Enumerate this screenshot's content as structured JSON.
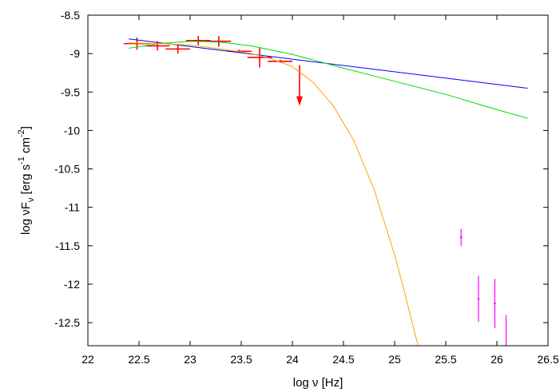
{
  "chart_data": {
    "type": "scatter",
    "xlabel": "log ν [Hz]",
    "ylabel_parts": {
      "main": "log νF",
      "sub": "ν",
      "units_open": " [erg s",
      "exp1": "-1",
      "units_mid": " cm",
      "exp2": "-2",
      "units_close": "]"
    },
    "xlim": [
      22,
      26.5
    ],
    "ylim": [
      -12.8,
      -8.5
    ],
    "x_ticks": [
      22,
      22.5,
      23,
      23.5,
      24,
      24.5,
      25,
      25.5,
      26,
      26.5
    ],
    "x_tick_labels": [
      "22",
      "22.5",
      "23",
      "23.5",
      "24",
      "24.5",
      "25",
      "25.5",
      "26",
      "26.5"
    ],
    "y_ticks": [
      -8.5,
      -9,
      -9.5,
      -10,
      -10.5,
      -11,
      -11.5,
      -12,
      -12.5
    ],
    "y_tick_labels": [
      "-8.5",
      "-9",
      "-9.5",
      "-10",
      "-10.5",
      "-11",
      "-11.5",
      "-12",
      "-12.5"
    ],
    "grid": false,
    "colors": {
      "fermi_points": "#ff0000",
      "tev_points": "#ff00ff",
      "model_powerlaw": "#0000ff",
      "model_logparabola": "#00dd00",
      "model_cutoff": "#ffa500",
      "axes": "#000000"
    },
    "series": [
      {
        "kind": "points",
        "color_key": "fermi_points",
        "points": [
          {
            "x": 22.48,
            "y": -8.87,
            "xerr": 0.13,
            "yerr": 0.08
          },
          {
            "x": 22.68,
            "y": -8.9,
            "xerr": 0.12,
            "yerr": 0.06
          },
          {
            "x": 22.88,
            "y": -8.94,
            "xerr": 0.12,
            "yerr": 0.06
          },
          {
            "x": 23.08,
            "y": -8.83,
            "xerr": 0.12,
            "yerr": 0.06
          },
          {
            "x": 23.28,
            "y": -8.84,
            "xerr": 0.12,
            "yerr": 0.07
          },
          {
            "x": 23.48,
            "y": -8.97,
            "xerr": 0.12,
            "yerr": 0.02
          },
          {
            "x": 23.68,
            "y": -9.05,
            "xerr": 0.12,
            "yerr": 0.13
          },
          {
            "x": 23.88,
            "y": -9.1,
            "xerr": 0.12,
            "yerr": 0.02
          }
        ]
      },
      {
        "kind": "upper_limit",
        "color_key": "fermi_points",
        "points": [
          {
            "x": 24.07,
            "y": -9.15,
            "arrow_to": -9.68
          }
        ]
      },
      {
        "kind": "points",
        "color_key": "tev_points",
        "points": [
          {
            "x": 25.65,
            "y": -11.39,
            "yerr": 0.11
          },
          {
            "x": 25.82,
            "y": -12.19,
            "yerr": 0.3
          },
          {
            "x": 25.98,
            "y": -12.25,
            "yerr": 0.32
          },
          {
            "x": 26.09,
            "y": -12.9,
            "yerr": 0.5
          }
        ]
      },
      {
        "kind": "line",
        "color_key": "model_powerlaw",
        "x": [
          22.4,
          26.3
        ],
        "y": [
          -8.81,
          -9.45
        ]
      },
      {
        "kind": "line",
        "color_key": "model_logparabola",
        "x": [
          22.4,
          22.7,
          23.0,
          23.3,
          23.6,
          24.0,
          24.5,
          25.0,
          25.5,
          26.0,
          26.3
        ],
        "y": [
          -8.93,
          -8.87,
          -8.84,
          -8.85,
          -8.9,
          -9.01,
          -9.19,
          -9.36,
          -9.53,
          -9.73,
          -9.84
        ]
      },
      {
        "kind": "line",
        "color_key": "model_cutoff",
        "x": [
          22.4,
          22.7,
          23.0,
          23.3,
          23.6,
          23.8,
          24.0,
          24.2,
          24.4,
          24.6,
          24.8,
          25.0,
          25.1,
          25.2,
          25.23
        ],
        "y": [
          -8.86,
          -8.87,
          -8.89,
          -8.94,
          -9.0,
          -9.07,
          -9.17,
          -9.37,
          -9.68,
          -10.13,
          -10.77,
          -11.62,
          -12.12,
          -12.65,
          -12.8
        ]
      }
    ]
  }
}
